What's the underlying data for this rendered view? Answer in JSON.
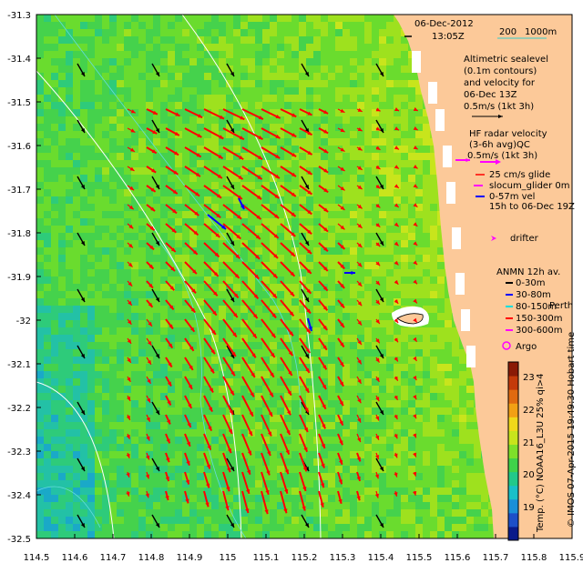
{
  "map": {
    "lon_range": [
      114.5,
      115.9
    ],
    "lat_range": [
      -32.5,
      -31.3
    ],
    "x_ticks": [
      "114.5",
      "114.6",
      "114.7",
      "114.8",
      "114.9",
      "115",
      "115.1",
      "115.2",
      "115.3",
      "115.4",
      "115.5",
      "115.6",
      "115.7",
      "115.8",
      "115.9"
    ],
    "y_ticks": [
      "-31.3",
      "-31.4",
      "-31.5",
      "-31.6",
      "-31.7",
      "-31.8",
      "-31.9",
      "-32",
      "-32.1",
      "-32.2",
      "-32.3",
      "-32.4",
      "-32.5"
    ]
  },
  "header": {
    "date": "06-Dec-2012",
    "time": "13:05Z",
    "scale_label": "200",
    "scale_label2": "1000m"
  },
  "legend": {
    "sealevel_lines": [
      "Altimetric sealevel",
      "(0.1m contours)",
      "and velocity for",
      "06-Dec 13Z",
      "0.5m/s (1kt 3h)"
    ],
    "hf_lines": [
      "HF radar velocity",
      "(3-6h avg)QC",
      "0.5m/s (1kt 3h)"
    ],
    "glide_label": "25 cm/s glide",
    "glider_label": "slocum_glider 0m",
    "vel_label": "0-57m vel",
    "vel_time": "15h to 06-Dec 19Z",
    "drifter_label": "drifter",
    "anmn_title": "ANMN 12h av.",
    "anmn_items": [
      {
        "label": "0-30m",
        "color": "#000000"
      },
      {
        "label": "30-80m",
        "color": "#0000ff"
      },
      {
        "label": "80-150m",
        "color": "#00dddd"
      },
      {
        "label": "150-300m",
        "color": "#ff0000"
      },
      {
        "label": "300-600m",
        "color": "#ff00ff"
      }
    ],
    "place_label": "Perth",
    "argo_label": "Argo"
  },
  "colorbar": {
    "ticks": [
      "23",
      "22",
      "21",
      "20",
      "19"
    ],
    "label": "Temp. (°C) NOAA16_L3U 25% qi>4",
    "colors": [
      "#0a1a8a",
      "#1d4fc8",
      "#1b8fd8",
      "#19c0c8",
      "#22c98a",
      "#3fd24a",
      "#7ee02a",
      "#c8e41c",
      "#f0d81a",
      "#f2a014",
      "#e06a10",
      "#c43a0a",
      "#8a1a06"
    ]
  },
  "credit": "© IMOS 07-Apr-2015 19:49:30 Hobart time",
  "colors": {
    "land": "#fcc999",
    "current_arrow": "#ff0000",
    "altimetry_arrow": "#000000",
    "contour": "#ffffff",
    "bathy": "#66dddd",
    "glider": "#0000ff",
    "drifter": "#ff00ff"
  }
}
